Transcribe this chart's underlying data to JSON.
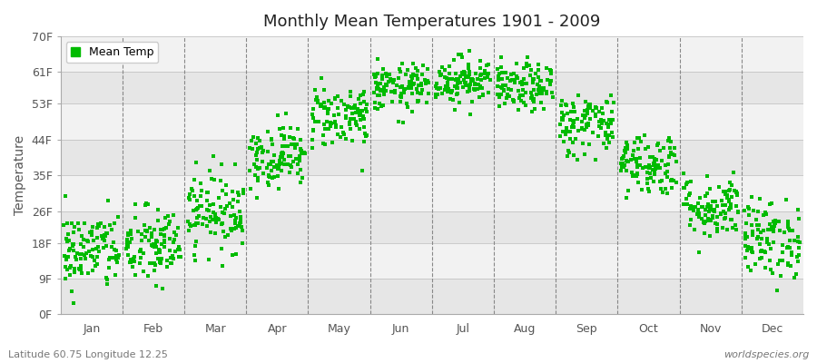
{
  "title": "Monthly Mean Temperatures 1901 - 2009",
  "ylabel": "Temperature",
  "bottom_left": "Latitude 60.75 Longitude 12.25",
  "bottom_right": "worldspecies.org",
  "dot_color": "#00BB00",
  "bg_color": "#FFFFFF",
  "plot_bg_color": "#FFFFFF",
  "band_color_light": "#F2F2F2",
  "band_color_dark": "#E6E6E6",
  "yticks": [
    0,
    9,
    18,
    26,
    35,
    44,
    53,
    61,
    70
  ],
  "ytick_labels": [
    "0F",
    "9F",
    "18F",
    "26F",
    "35F",
    "44F",
    "53F",
    "61F",
    "70F"
  ],
  "months": [
    "Jan",
    "Feb",
    "Mar",
    "Apr",
    "May",
    "Jun",
    "Jul",
    "Aug",
    "Sep",
    "Oct",
    "Nov",
    "Dec"
  ],
  "month_mean_F": [
    16,
    17,
    26,
    40,
    50,
    57,
    59,
    57,
    48,
    38,
    27,
    19
  ],
  "month_std_F": [
    5,
    5,
    5,
    4,
    4,
    3,
    3,
    3,
    4,
    4,
    4,
    5
  ],
  "n_years": 109,
  "ylim": [
    0,
    70
  ],
  "legend_label": "Mean Temp",
  "dot_size": 10
}
